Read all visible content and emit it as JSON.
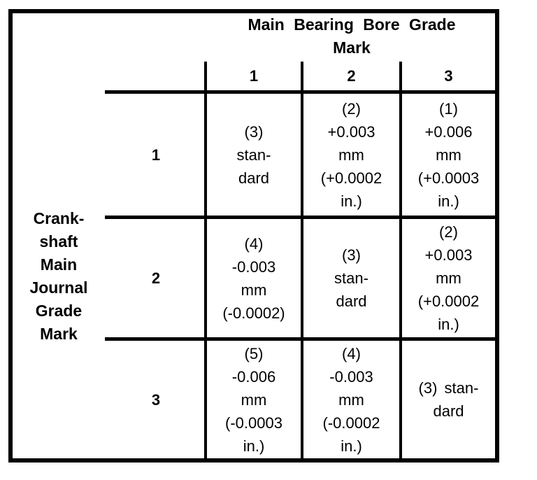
{
  "table": {
    "column_header": {
      "title": "Main Bearing Bore Grade\nMark",
      "numbers": [
        "1",
        "2",
        "3"
      ]
    },
    "row_header": {
      "title": "Crank-\nshaft\nMain\nJournal\nGrade\nMark",
      "numbers": [
        "1",
        "2",
        "3"
      ]
    },
    "cells": [
      [
        "(3)\nstan-\ndard",
        "(2)\n+0.003\nmm\n(+0.0002\nin.)",
        "(1)\n+0.006\nmm\n(+0.0003\nin.)"
      ],
      [
        "(4)\n-0.003\nmm\n(-0.0002)",
        "(3)\nstan-\ndard",
        "(2)\n+0.003\nmm\n(+0.0002\nin.)"
      ],
      [
        "(5)\n-0.006\nmm\n(-0.0003\nin.)",
        "(4)\n-0.003\nmm\n(-0.0002\nin.)",
        "(3) stan-\ndard"
      ]
    ],
    "colors": {
      "border": "#000000",
      "text": "#000000",
      "background": "#ffffff"
    }
  }
}
